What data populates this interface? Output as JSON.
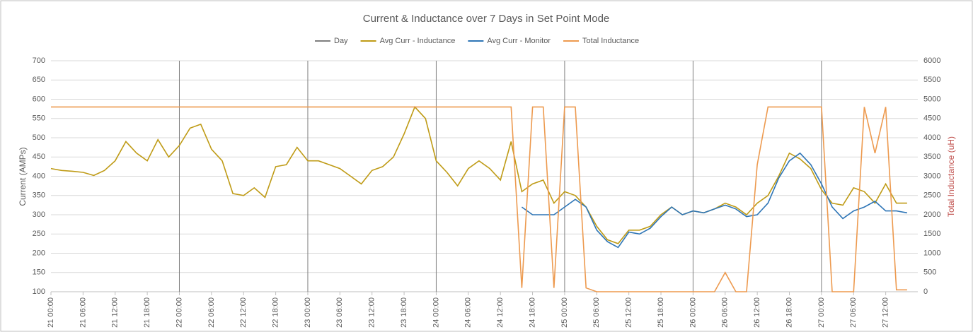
{
  "chart_data": {
    "type": "line",
    "title": "Current & Inductance over 7 Days in Set Point Mode",
    "y_label": "Current (AMPs)",
    "y2_label": "Total Inductance (uH)",
    "x": [
      0,
      2,
      4,
      6,
      8,
      10,
      12,
      14,
      16,
      18,
      20,
      22,
      24,
      26,
      28,
      30,
      32,
      34,
      36,
      38,
      40,
      42,
      44,
      46,
      48,
      50,
      52,
      54,
      56,
      58,
      60,
      62,
      64,
      66,
      68,
      70,
      72,
      74,
      76,
      78,
      80,
      82,
      84,
      86,
      88,
      90,
      92,
      94,
      96,
      98,
      100,
      102,
      104,
      106,
      108,
      110,
      112,
      114,
      116,
      118,
      120,
      122,
      124,
      126,
      128,
      130,
      132,
      134,
      136,
      138,
      140,
      142,
      144,
      146,
      148,
      150,
      152,
      154,
      156,
      158,
      160
    ],
    "xlim": [
      0,
      162
    ],
    "xticks": [
      {
        "value": 0,
        "label": "21 00:00"
      },
      {
        "value": 6,
        "label": "21 06:00"
      },
      {
        "value": 12,
        "label": "21 12:00"
      },
      {
        "value": 18,
        "label": "21 18:00"
      },
      {
        "value": 24,
        "label": "22 00:00"
      },
      {
        "value": 30,
        "label": "22 06:00"
      },
      {
        "value": 36,
        "label": "22 12:00"
      },
      {
        "value": 42,
        "label": "22 18:00"
      },
      {
        "value": 48,
        "label": "23 00:00"
      },
      {
        "value": 54,
        "label": "23 06:00"
      },
      {
        "value": 60,
        "label": "23 12:00"
      },
      {
        "value": 66,
        "label": "23 18:00"
      },
      {
        "value": 72,
        "label": "24 00:00"
      },
      {
        "value": 78,
        "label": "24 06:00"
      },
      {
        "value": 84,
        "label": "24 12:00"
      },
      {
        "value": 90,
        "label": "24 18:00"
      },
      {
        "value": 96,
        "label": "25 00:00"
      },
      {
        "value": 102,
        "label": "25 06:00"
      },
      {
        "value": 108,
        "label": "25 12:00"
      },
      {
        "value": 114,
        "label": "25 18:00"
      },
      {
        "value": 120,
        "label": "26 00:00"
      },
      {
        "value": 126,
        "label": "26 06:00"
      },
      {
        "value": 132,
        "label": "26 12:00"
      },
      {
        "value": 138,
        "label": "26 18:00"
      },
      {
        "value": 144,
        "label": "27 00:00"
      },
      {
        "value": 150,
        "label": "27 06:00"
      },
      {
        "value": 156,
        "label": "27 12:00"
      }
    ],
    "ylim": [
      100,
      700
    ],
    "yticks": [
      100,
      150,
      200,
      250,
      300,
      350,
      400,
      450,
      500,
      550,
      600,
      650,
      700
    ],
    "y2lim": [
      0,
      6000
    ],
    "y2ticks": [
      0,
      500,
      1000,
      1500,
      2000,
      2500,
      3000,
      3500,
      4000,
      4500,
      5000,
      5500,
      6000
    ],
    "grid": true,
    "legend": "top",
    "day_series": {
      "name": "Day",
      "color": "#7f7f7f",
      "x": [
        24,
        48,
        72,
        96,
        120,
        144
      ],
      "values": [
        700,
        700,
        700,
        700,
        700,
        700
      ]
    },
    "series": [
      {
        "name": "Avg Curr - Inductance",
        "color": "#bf9b16",
        "values": [
          420,
          415,
          413,
          410,
          402,
          415,
          440,
          490,
          460,
          440,
          495,
          450,
          480,
          525,
          535,
          470,
          440,
          355,
          350,
          370,
          345,
          425,
          430,
          475,
          440,
          440,
          430,
          420,
          400,
          380,
          415,
          425,
          450,
          510,
          580,
          550,
          440,
          410,
          375,
          420,
          440,
          420,
          390,
          490,
          360,
          380,
          390,
          330,
          360,
          350,
          320,
          270,
          235,
          225,
          260,
          260,
          270,
          300,
          320,
          300,
          310,
          305,
          315,
          330,
          320,
          300,
          330,
          350,
          400,
          460,
          445,
          420,
          365,
          330,
          325,
          370,
          360,
          330,
          380,
          330,
          330
        ]
      },
      {
        "name": "Avg Curr - Monitor",
        "color": "#2e75b6",
        "values": [
          null,
          null,
          null,
          null,
          null,
          null,
          null,
          null,
          null,
          null,
          null,
          null,
          null,
          null,
          null,
          null,
          null,
          null,
          null,
          null,
          null,
          null,
          null,
          null,
          null,
          null,
          null,
          null,
          null,
          null,
          null,
          null,
          null,
          null,
          null,
          null,
          null,
          null,
          null,
          null,
          null,
          null,
          null,
          null,
          320,
          300,
          300,
          300,
          320,
          340,
          320,
          260,
          230,
          215,
          255,
          250,
          265,
          295,
          320,
          300,
          310,
          305,
          315,
          325,
          315,
          295,
          300,
          330,
          395,
          440,
          460,
          430,
          380,
          320,
          290,
          310,
          320,
          335,
          310,
          310,
          305
        ]
      },
      {
        "name": "Total Inductance",
        "color": "#ed9a4f",
        "axis": "y2",
        "values": [
          4800,
          4800,
          4800,
          4800,
          4800,
          4800,
          4800,
          4800,
          4800,
          4800,
          4800,
          4800,
          4800,
          4800,
          4800,
          4800,
          4800,
          4800,
          4800,
          4800,
          4800,
          4800,
          4800,
          4800,
          4800,
          4800,
          4800,
          4800,
          4800,
          4800,
          4800,
          4800,
          4800,
          4800,
          4800,
          4800,
          4800,
          4800,
          4800,
          4800,
          4800,
          4800,
          4800,
          4800,
          100,
          4800,
          4800,
          100,
          4800,
          4800,
          100,
          0,
          0,
          0,
          0,
          0,
          0,
          0,
          0,
          0,
          0,
          0,
          0,
          500,
          0,
          0,
          3300,
          4800,
          4800,
          4800,
          4800,
          4800,
          4800,
          0,
          0,
          0,
          4800,
          3600,
          4800,
          50,
          50
        ]
      }
    ]
  }
}
